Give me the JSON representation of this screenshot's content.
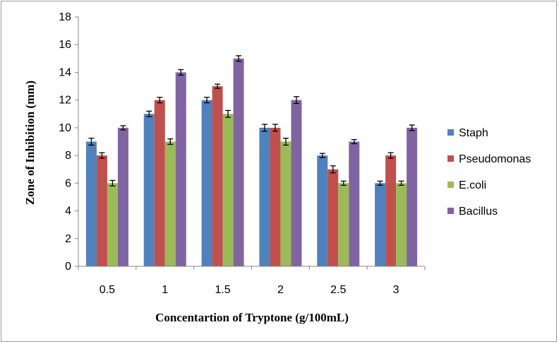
{
  "chart_data": {
    "type": "bar",
    "title": "",
    "xlabel": "Concentartion of Tryptone (g/100mL)",
    "ylabel": "Zone of Inhibition (mm)",
    "ylim": [
      0,
      18
    ],
    "yticks": [
      0,
      2,
      4,
      6,
      8,
      10,
      12,
      14,
      16,
      18
    ],
    "grid": false,
    "legend_position": "right",
    "categories": [
      "0.5",
      "1",
      "1.5",
      "2",
      "2.5",
      "3"
    ],
    "series": [
      {
        "name": "Staph",
        "color": "#4F81BD",
        "values": [
          9,
          11,
          12,
          10,
          8,
          6
        ],
        "errors": [
          0.25,
          0.2,
          0.2,
          0.25,
          0.15,
          0.15
        ]
      },
      {
        "name": "Pseudomonas",
        "color": "#C0504D",
        "values": [
          8,
          12,
          13,
          10,
          7,
          8
        ],
        "errors": [
          0.2,
          0.2,
          0.15,
          0.25,
          0.25,
          0.2
        ]
      },
      {
        "name": "E.coli",
        "color": "#9BBB59",
        "values": [
          6,
          9,
          11,
          9,
          6,
          6
        ],
        "errors": [
          0.2,
          0.2,
          0.25,
          0.25,
          0.15,
          0.15
        ]
      },
      {
        "name": "Bacillus",
        "color": "#8064A2",
        "values": [
          10,
          14,
          15,
          12,
          9,
          10
        ],
        "errors": [
          0.15,
          0.2,
          0.2,
          0.25,
          0.15,
          0.2
        ]
      }
    ]
  }
}
